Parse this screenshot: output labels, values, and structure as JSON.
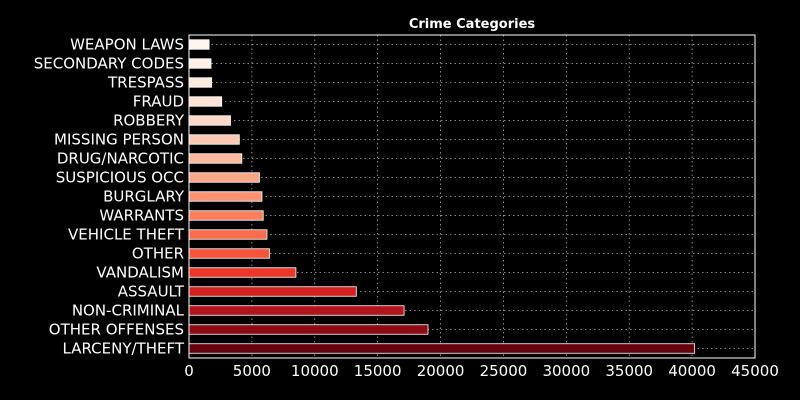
{
  "chart_data": {
    "type": "bar",
    "orientation": "horizontal",
    "title": "Crime Categories",
    "xlabel": "",
    "ylabel": "",
    "xlim": [
      0,
      45000
    ],
    "xticks": [
      "0",
      "5000",
      "10000",
      "15000",
      "20000",
      "25000",
      "30000",
      "35000",
      "40000",
      "45000"
    ],
    "grid": true,
    "colormap": "Reds (reversed by rank)",
    "categories": [
      "LARCENY/THEFT",
      "OTHER OFFENSES",
      "NON-CRIMINAL",
      "ASSAULT",
      "VANDALISM",
      "OTHER",
      "VEHICLE THEFT",
      "WARRANTS",
      "BURGLARY",
      "SUSPICIOUS OCC",
      "DRUG/NARCOTIC",
      "MISSING PERSON",
      "ROBBERY",
      "FRAUD",
      "TRESPASS",
      "SECONDARY CODES",
      "WEAPON LAWS"
    ],
    "values": [
      40200,
      19000,
      17100,
      13300,
      8500,
      6400,
      6200,
      5900,
      5800,
      5600,
      4200,
      4000,
      3300,
      2600,
      1800,
      1750,
      1600
    ],
    "colors": [
      "#67000d",
      "#8e0b14",
      "#b3131b",
      "#d32020",
      "#eb372a",
      "#f6553c",
      "#fb6c4c",
      "#fc8060",
      "#fc9474",
      "#fca689",
      "#fcb89e",
      "#fdc9b4",
      "#fed9c9",
      "#fee3d6",
      "#ffebe2",
      "#fff1ea",
      "#fff5f0"
    ]
  }
}
